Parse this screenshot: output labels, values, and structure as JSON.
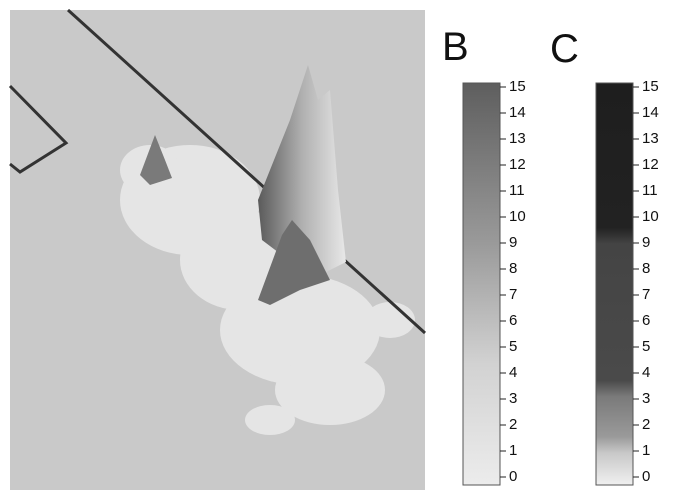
{
  "panels": [
    {
      "label": "B",
      "ticks": [
        0,
        1,
        2,
        3,
        4,
        5,
        6,
        7,
        8,
        9,
        10,
        11,
        12,
        13,
        14,
        15
      ]
    },
    {
      "label": "C",
      "ticks": [
        0,
        1,
        2,
        3,
        4,
        5,
        6,
        7,
        8,
        9,
        10,
        11,
        12,
        13,
        14,
        15
      ]
    }
  ]
}
